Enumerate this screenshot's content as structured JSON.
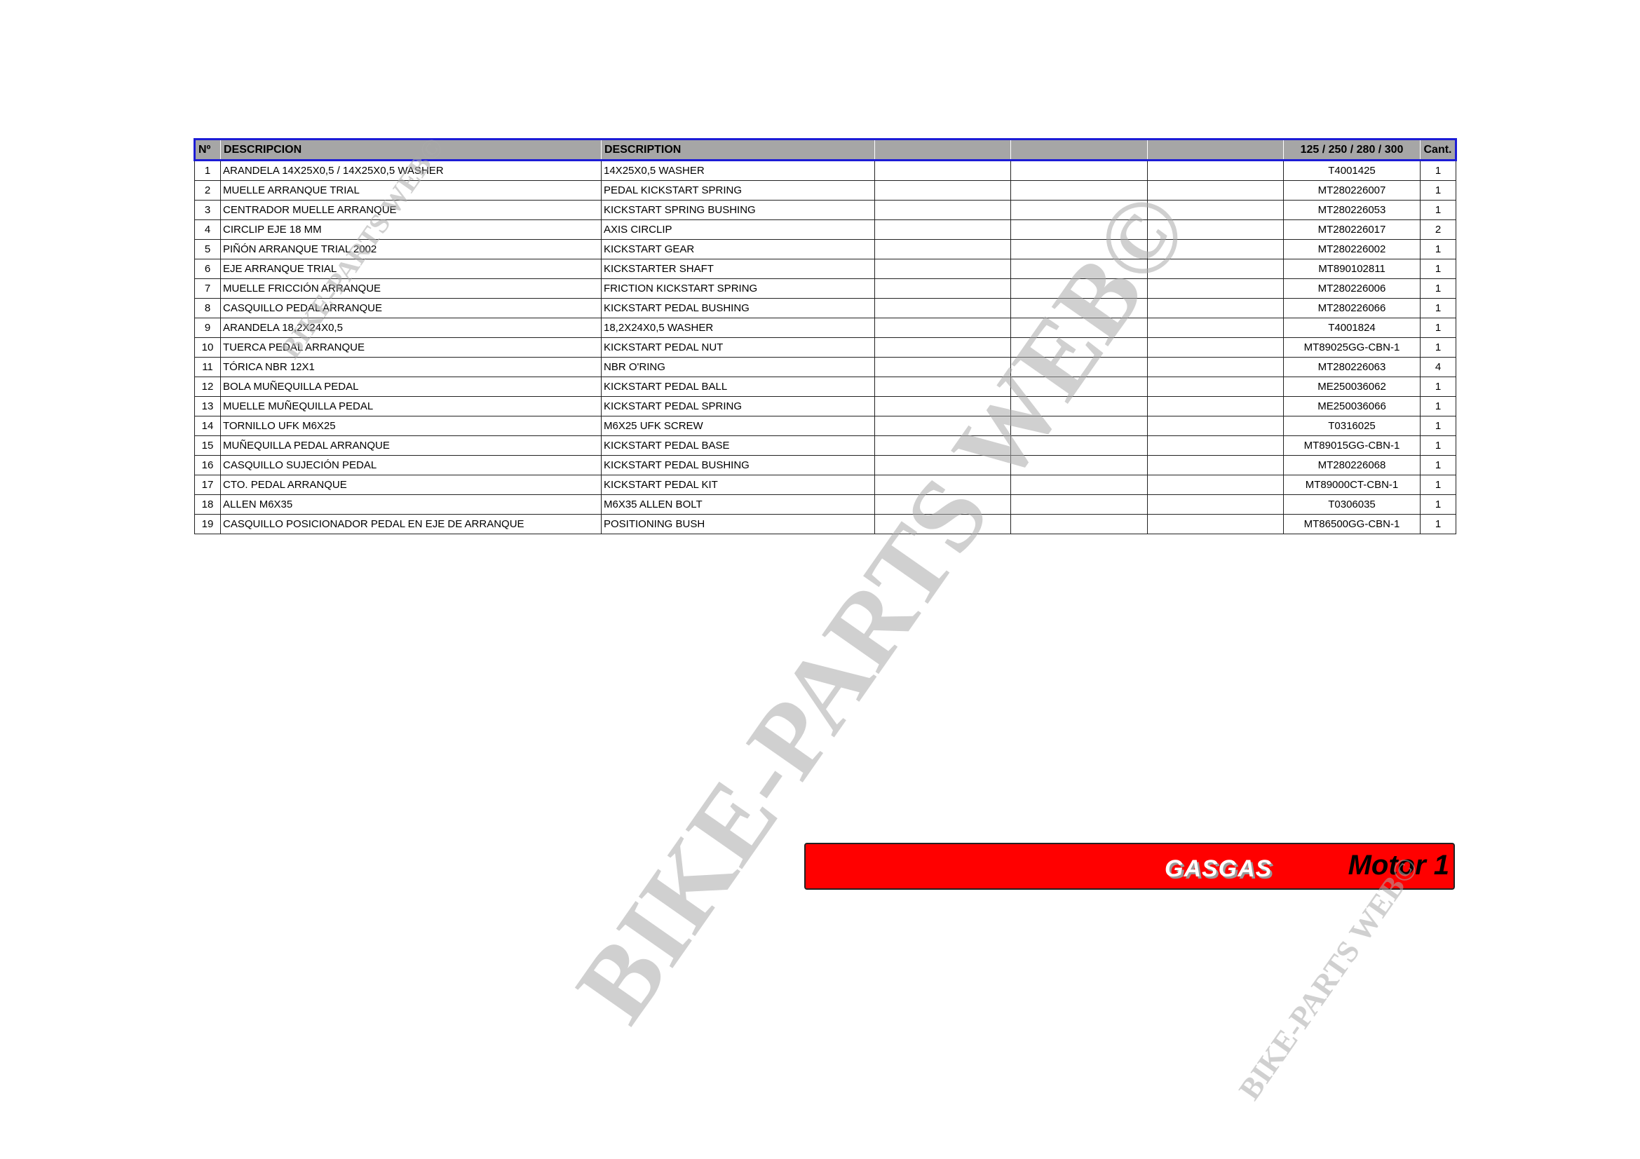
{
  "table": {
    "headers": [
      "Nº",
      "DESCRIPCION",
      "DESCRIPTION",
      "",
      "",
      "",
      "125 / 250 / 280 / 300",
      "Cant."
    ],
    "rows": [
      {
        "n": "1",
        "es": "ARANDELA 14X25X0,5 / 14X25X0,5 WASHER",
        "en": "14X25X0,5 WASHER",
        "code": "T4001425",
        "qty": "1"
      },
      {
        "n": "2",
        "es": "MUELLE ARRANQUE TRIAL",
        "en": "PEDAL KICKSTART SPRING",
        "code": "MT280226007",
        "qty": "1"
      },
      {
        "n": "3",
        "es": "CENTRADOR MUELLE ARRANQUE",
        "en": "KICKSTART SPRING BUSHING",
        "code": "MT280226053",
        "qty": "1"
      },
      {
        "n": "4",
        "es": "CIRCLIP EJE 18 MM",
        "en": "AXIS CIRCLIP",
        "code": "MT280226017",
        "qty": "2"
      },
      {
        "n": "5",
        "es": "PIÑÓN ARRANQUE TRIAL 2002",
        "en": "KICKSTART GEAR",
        "code": "MT280226002",
        "qty": "1"
      },
      {
        "n": "6",
        "es": "EJE ARRANQUE TRIAL",
        "en": "KICKSTARTER SHAFT",
        "code": "MT890102811",
        "qty": "1"
      },
      {
        "n": "7",
        "es": "MUELLE FRICCIÓN ARRANQUE",
        "en": "FRICTION KICKSTART SPRING",
        "code": "MT280226006",
        "qty": "1"
      },
      {
        "n": "8",
        "es": "CASQUILLO PEDAL ARRANQUE",
        "en": "KICKSTART PEDAL BUSHING",
        "code": "MT280226066",
        "qty": "1"
      },
      {
        "n": "9",
        "es": "ARANDELA 18,2X24X0,5",
        "en": "18,2X24X0,5 WASHER",
        "code": "T4001824",
        "qty": "1"
      },
      {
        "n": "10",
        "es": "TUERCA PEDAL ARRANQUE",
        "en": "KICKSTART PEDAL NUT",
        "code": "MT89025GG-CBN-1",
        "qty": "1"
      },
      {
        "n": "11",
        "es": "TÓRICA NBR 12X1",
        "en": "NBR O'RING",
        "code": "MT280226063",
        "qty": "4"
      },
      {
        "n": "12",
        "es": "BOLA MUÑEQUILLA PEDAL",
        "en": "KICKSTART PEDAL BALL",
        "code": "ME250036062",
        "qty": "1"
      },
      {
        "n": "13",
        "es": "MUELLE MUÑEQUILLA PEDAL",
        "en": "KICKSTART PEDAL SPRING",
        "code": "ME250036066",
        "qty": "1"
      },
      {
        "n": "14",
        "es": "TORNILLO UFK M6X25",
        "en": "M6X25 UFK SCREW",
        "code": "T0316025",
        "qty": "1"
      },
      {
        "n": "15",
        "es": "MUÑEQUILLA PEDAL ARRANQUE",
        "en": "KICKSTART PEDAL BASE",
        "code": "MT89015GG-CBN-1",
        "qty": "1"
      },
      {
        "n": "16",
        "es": "CASQUILLO SUJECIÓN PEDAL",
        "en": "KICKSTART PEDAL BUSHING",
        "code": "MT280226068",
        "qty": "1"
      },
      {
        "n": "17",
        "es": "CTO. PEDAL ARRANQUE",
        "en": "KICKSTART PEDAL KIT",
        "code": "MT89000CT-CBN-1",
        "qty": "1"
      },
      {
        "n": "18",
        "es": "ALLEN M6X35",
        "en": "M6X35 ALLEN BOLT",
        "code": "T0306035",
        "qty": "1"
      },
      {
        "n": "19",
        "es": "CASQUILLO POSICIONADOR PEDAL EN EJE DE ARRANQUE",
        "en": "POSITIONING BUSH",
        "code": "MT86500GG-CBN-1",
        "qty": "1"
      }
    ]
  },
  "banner": {
    "brand": "GASGAS",
    "section": "Motor 1",
    "color": "#ff0000"
  },
  "watermarks": {
    "main": "BIKE-PARTS WEB©",
    "small": "BIKE-PARTS WEB©"
  },
  "colors": {
    "header_bg": "#a6a6a6",
    "header_border": "#1c1cd6"
  }
}
